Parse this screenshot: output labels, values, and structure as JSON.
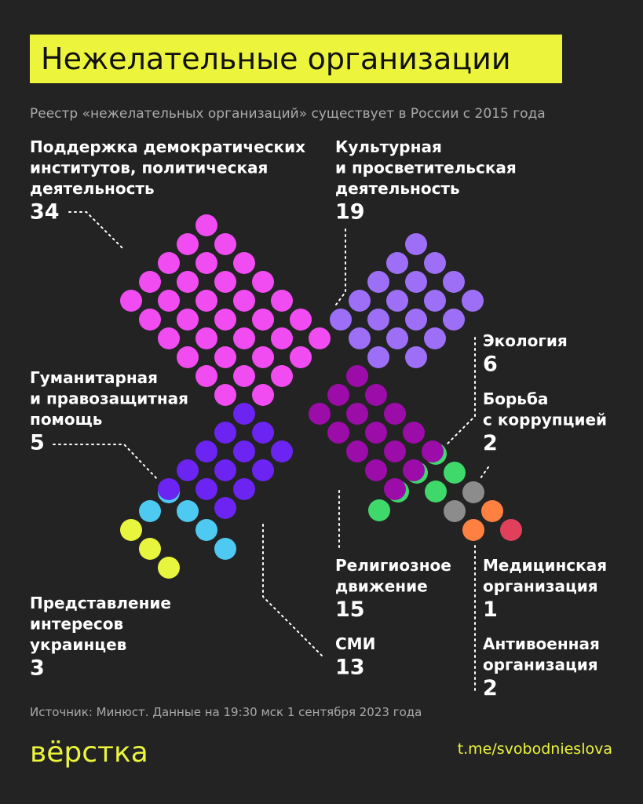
{
  "chart_data": {
    "type": "dots",
    "title": "Нежелательные организации",
    "subtitle": "Реестр «нежелательных организаций» существует в России с 2015 года",
    "source": "Источник: Минюст. Данные на 19:30 мск 1 сентября 2023 года",
    "brand": "вёрстка",
    "link": "t.me/svobodnieslova",
    "series": [
      {
        "name": [
          "Поддержка демократических",
          "институтов, политическая",
          "деятельность"
        ],
        "value": 34,
        "color": "#f14cf2"
      },
      {
        "name": [
          "Культурная",
          "и просветительская",
          "деятельность"
        ],
        "value": 19,
        "color": "#9d6ff7"
      },
      {
        "name": [
          "Экология"
        ],
        "value": 6,
        "color": "#3fd86a"
      },
      {
        "name": [
          "Борьба",
          "с коррупцией"
        ],
        "value": 2,
        "color": "#8c8c8c"
      },
      {
        "name": [
          "Гуманитарная",
          "и правозащитная",
          "помощь"
        ],
        "value": 5,
        "color": "#4ec9f2"
      },
      {
        "name": [
          "Представление",
          "интересов",
          "украинцев"
        ],
        "value": 3,
        "color": "#e8f53f"
      },
      {
        "name": [
          "Религиозное",
          "движение"
        ],
        "value": 15,
        "color": "#9c0ca9"
      },
      {
        "name": [
          "СМИ"
        ],
        "value": 13,
        "color": "#6b24f1"
      },
      {
        "name": [
          "Медицинская",
          "организация"
        ],
        "value": 1,
        "color": "#e0405a"
      },
      {
        "name": [
          "Антивоенная",
          "организация"
        ],
        "value": 2,
        "color": "#ff8142"
      }
    ]
  }
}
